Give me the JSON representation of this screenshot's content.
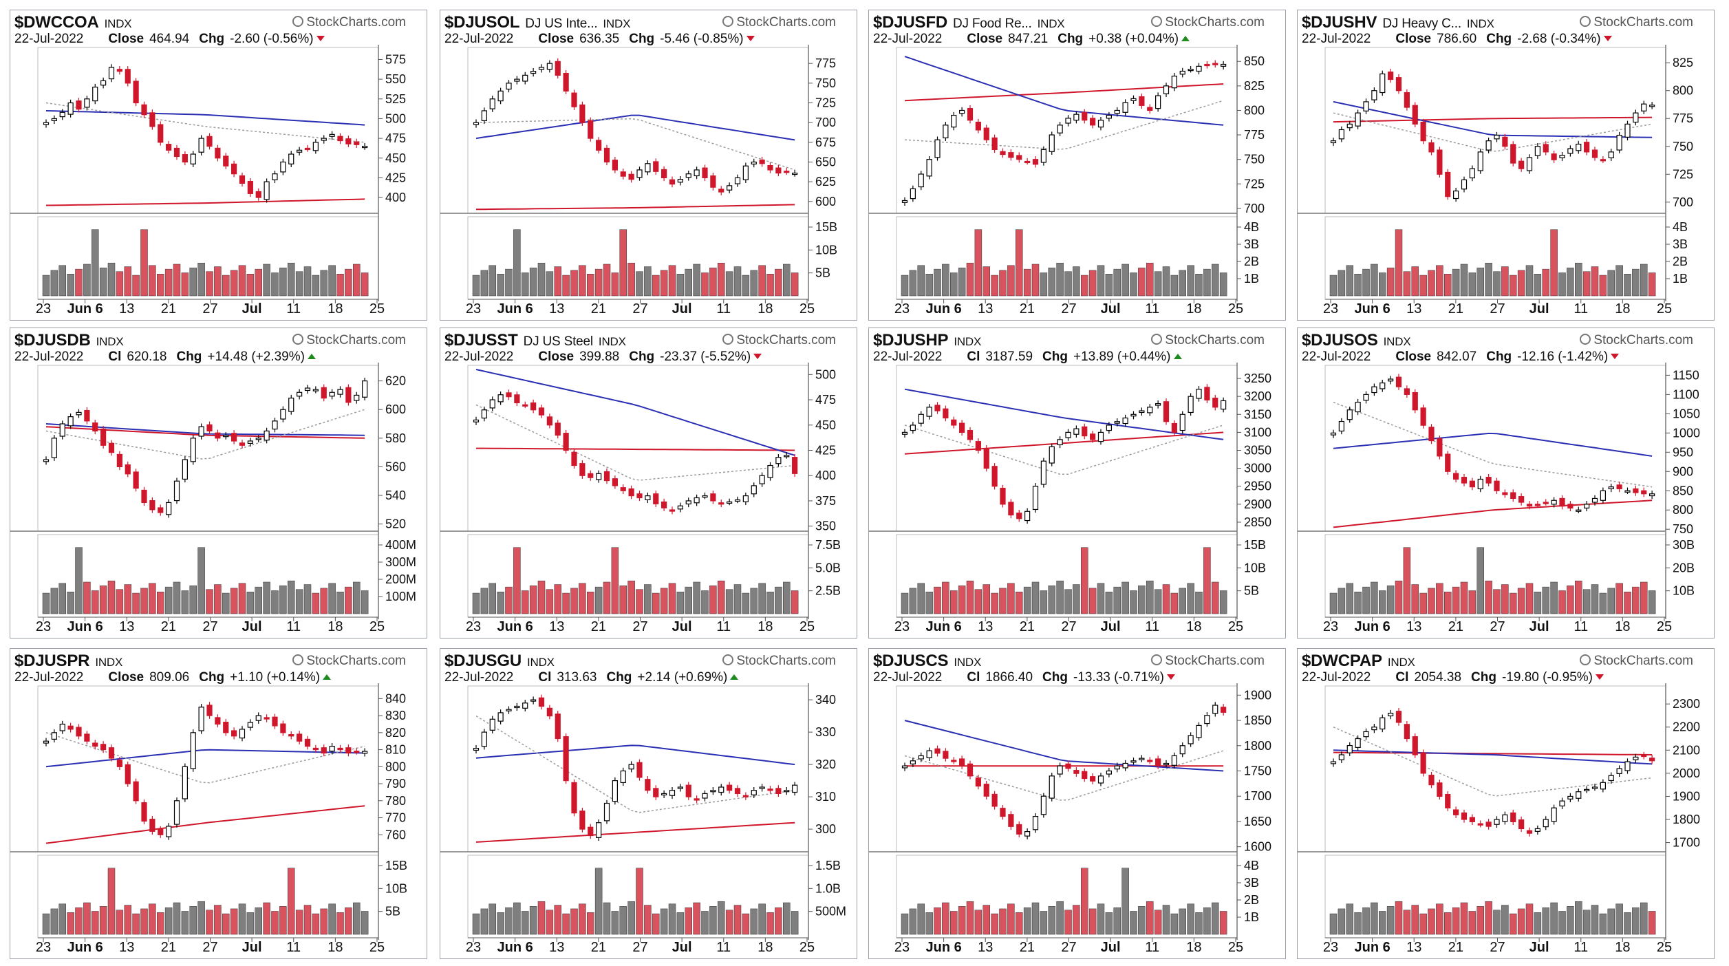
{
  "brand": "StockCharts.com",
  "colors": {
    "up": "#000000",
    "down": "#d0162b",
    "ma_short": "#9a9a9a",
    "ma_mid": "#2a2fb4",
    "ma_long": "#d0162b",
    "vol_up": "#7f7f7f",
    "vol_down": "#d9535f"
  },
  "chart_data": [
    {
      "type": "candlestick",
      "symbol": "$DWCCOA",
      "name": "",
      "index_label": "INDX",
      "date": "22-Jul-2022",
      "close_label": "Close",
      "close": "464.94",
      "chg_label": "Chg",
      "chg": "-2.60 (-0.56%)",
      "direction": "down",
      "ylim": [
        380,
        585
      ],
      "price_ticks": [
        "575",
        "550",
        "525",
        "500",
        "475",
        "450",
        "425",
        "400"
      ],
      "volume_ticks": [],
      "x_ticks": [
        "23",
        "Jun 6",
        "13",
        "21",
        "27",
        "Jul",
        "11",
        "18",
        "25"
      ],
      "path": [
        495,
        500,
        508,
        520,
        512,
        525,
        540,
        548,
        565,
        560,
        545,
        520,
        505,
        490,
        470,
        460,
        452,
        445,
        455,
        475,
        465,
        450,
        440,
        430,
        418,
        405,
        400,
        420,
        430,
        445,
        455,
        460,
        462,
        470,
        475,
        480,
        472,
        468,
        467,
        465
      ],
      "ma_short_level": [
        520,
        490,
        470
      ],
      "ma_mid_level": [
        510,
        505,
        492
      ],
      "ma_long_level": [
        390,
        393,
        398
      ],
      "volume_spikes": [
        6,
        12
      ]
    },
    {
      "type": "candlestick",
      "symbol": "$DJUSOL",
      "name": "DJ US Inte...",
      "index_label": "INDX",
      "date": "22-Jul-2022",
      "close_label": "Close",
      "close": "636.35",
      "chg_label": "Chg",
      "chg": "-5.46 (-0.85%)",
      "direction": "down",
      "ylim": [
        585,
        790
      ],
      "price_ticks": [
        "775",
        "750",
        "725",
        "700",
        "675",
        "650",
        "625",
        "600"
      ],
      "volume_ticks": [
        "15B",
        "10B",
        "5B"
      ],
      "x_ticks": [
        "23",
        "Jun 6",
        "13",
        "21",
        "27",
        "Jul",
        "11",
        "18",
        "25"
      ],
      "path": [
        700,
        715,
        730,
        740,
        750,
        755,
        760,
        765,
        770,
        775,
        760,
        740,
        720,
        700,
        680,
        665,
        650,
        640,
        632,
        628,
        640,
        648,
        638,
        630,
        622,
        628,
        635,
        640,
        630,
        618,
        612,
        620,
        630,
        645,
        650,
        648,
        640,
        636,
        638,
        636
      ],
      "ma_short_level": [
        700,
        705,
        640
      ],
      "ma_mid_level": [
        680,
        710,
        678
      ],
      "ma_long_level": [
        590,
        592,
        596
      ],
      "volume_spikes": [
        5,
        18
      ]
    },
    {
      "type": "candlestick",
      "symbol": "$DJUSFD",
      "name": "DJ Food Re...",
      "index_label": "INDX",
      "date": "22-Jul-2022",
      "close_label": "Close",
      "close": "847.21",
      "chg_label": "Chg",
      "chg": "+0.38 (+0.04%)",
      "direction": "up",
      "ylim": [
        695,
        860
      ],
      "price_ticks": [
        "850",
        "825",
        "800",
        "775",
        "750",
        "725",
        "700"
      ],
      "volume_ticks": [
        "4B",
        "3B",
        "2B",
        "1B"
      ],
      "x_ticks": [
        "23",
        "Jun 6",
        "13",
        "21",
        "27",
        "Jul",
        "11",
        "18",
        "25"
      ],
      "path": [
        708,
        720,
        735,
        750,
        770,
        785,
        795,
        800,
        790,
        780,
        770,
        760,
        755,
        752,
        750,
        748,
        745,
        760,
        775,
        785,
        792,
        796,
        790,
        785,
        790,
        795,
        800,
        808,
        812,
        805,
        800,
        815,
        825,
        835,
        840,
        842,
        845,
        846,
        847,
        847
      ],
      "ma_short_level": [
        770,
        760,
        810
      ],
      "ma_mid_level": [
        855,
        800,
        785
      ],
      "ma_long_level": [
        810,
        818,
        827
      ],
      "volume_spikes": [
        9,
        14
      ]
    },
    {
      "type": "candlestick",
      "symbol": "$DJUSHV",
      "name": "DJ Heavy C...",
      "index_label": "INDX",
      "date": "22-Jul-2022",
      "close_label": "Close",
      "close": "786.60",
      "chg_label": "Chg",
      "chg": "-2.68 (-0.34%)",
      "direction": "down",
      "ylim": [
        690,
        835
      ],
      "price_ticks": [
        "825",
        "800",
        "775",
        "750",
        "725",
        "700"
      ],
      "volume_ticks": [
        "4B",
        "3B",
        "2B",
        "1B"
      ],
      "x_ticks": [
        "23",
        "Jun 6",
        "13",
        "21",
        "27",
        "Jul",
        "11",
        "18",
        "25"
      ],
      "path": [
        755,
        765,
        770,
        780,
        790,
        800,
        815,
        810,
        800,
        785,
        770,
        755,
        745,
        725,
        705,
        710,
        720,
        730,
        745,
        755,
        760,
        750,
        735,
        730,
        740,
        750,
        745,
        738,
        742,
        748,
        752,
        745,
        740,
        738,
        745,
        760,
        770,
        780,
        788,
        787
      ],
      "ma_short_level": [
        780,
        745,
        770
      ],
      "ma_mid_level": [
        790,
        760,
        758
      ],
      "ma_long_level": [
        772,
        775,
        776
      ],
      "volume_spikes": [
        8,
        27
      ]
    },
    {
      "type": "candlestick",
      "symbol": "$DJUSDB",
      "name": "",
      "index_label": "INDX",
      "date": "22-Jul-2022",
      "close_label": "Cl",
      "close": "620.18",
      "chg_label": "Chg",
      "chg": "+14.48 (+2.39%)",
      "direction": "up",
      "ylim": [
        515,
        628
      ],
      "price_ticks": [
        "620",
        "600",
        "580",
        "560",
        "540",
        "520"
      ],
      "volume_ticks": [
        "400M",
        "300M",
        "200M",
        "100M"
      ],
      "x_ticks": [
        "23",
        "Jun 6",
        "13",
        "21",
        "27",
        "Jul",
        "11",
        "18",
        "25"
      ],
      "path": [
        565,
        580,
        590,
        595,
        598,
        592,
        585,
        575,
        570,
        560,
        555,
        545,
        535,
        530,
        528,
        535,
        550,
        565,
        580,
        588,
        585,
        580,
        582,
        578,
        575,
        578,
        580,
        585,
        592,
        600,
        608,
        612,
        615,
        614,
        608,
        612,
        614,
        605,
        610,
        620
      ],
      "ma_short_level": [
        585,
        565,
        600
      ],
      "ma_mid_level": [
        590,
        583,
        582
      ],
      "ma_long_level": [
        588,
        582,
        580
      ],
      "volume_spikes": [
        4,
        19
      ]
    },
    {
      "type": "candlestick",
      "symbol": "$DJUSST",
      "name": "DJ US Steel",
      "index_label": "INDX",
      "date": "22-Jul-2022",
      "close_label": "Close",
      "close": "399.88",
      "chg_label": "Chg",
      "chg": "-23.37 (-5.52%)",
      "direction": "down",
      "ylim": [
        345,
        505
      ],
      "price_ticks": [
        "500",
        "475",
        "450",
        "425",
        "400",
        "375",
        "350"
      ],
      "volume_ticks": [
        "7.5B",
        "5.0B",
        "2.5B"
      ],
      "x_ticks": [
        "23",
        "Jun 6",
        "13",
        "21",
        "27",
        "Jul",
        "11",
        "18",
        "25"
      ],
      "path": [
        455,
        465,
        475,
        480,
        478,
        472,
        470,
        465,
        460,
        450,
        440,
        425,
        410,
        400,
        398,
        402,
        395,
        390,
        385,
        380,
        378,
        380,
        372,
        368,
        365,
        370,
        375,
        378,
        380,
        375,
        372,
        374,
        376,
        380,
        390,
        400,
        410,
        418,
        420,
        402
      ],
      "ma_short_level": [
        470,
        395,
        410
      ],
      "ma_mid_level": [
        505,
        470,
        420
      ],
      "ma_long_level": [
        427,
        426,
        425
      ],
      "volume_spikes": [
        5,
        17
      ]
    },
    {
      "type": "candlestick",
      "symbol": "$DJUSHP",
      "name": "",
      "index_label": "INDX",
      "date": "22-Jul-2022",
      "close_label": "Cl",
      "close": "3187.59",
      "chg_label": "Chg",
      "chg": "+13.89 (+0.44%)",
      "direction": "up",
      "ylim": [
        2825,
        3275
      ],
      "price_ticks": [
        "3250",
        "3200",
        "3150",
        "3100",
        "3050",
        "3000",
        "2950",
        "2900",
        "2850"
      ],
      "volume_ticks": [
        "15B",
        "10B",
        "5B"
      ],
      "x_ticks": [
        "23",
        "Jun 6",
        "13",
        "21",
        "27",
        "Jul",
        "11",
        "18",
        "25"
      ],
      "path": [
        3100,
        3120,
        3150,
        3170,
        3160,
        3140,
        3120,
        3100,
        3080,
        3050,
        3000,
        2950,
        2900,
        2870,
        2860,
        2880,
        2950,
        3020,
        3060,
        3080,
        3100,
        3110,
        3090,
        3080,
        3100,
        3120,
        3130,
        3140,
        3150,
        3160,
        3170,
        3180,
        3130,
        3100,
        3150,
        3200,
        3220,
        3190,
        3170,
        3188
      ],
      "ma_short_level": [
        3120,
        2980,
        3120
      ],
      "ma_mid_level": [
        3220,
        3140,
        3080
      ],
      "ma_long_level": [
        3040,
        3070,
        3100
      ],
      "volume_spikes": [
        22,
        37
      ]
    },
    {
      "type": "candlestick",
      "symbol": "$DJUSOS",
      "name": "",
      "index_label": "INDX",
      "date": "22-Jul-2022",
      "close_label": "Close",
      "close": "842.07",
      "chg_label": "Chg",
      "chg": "-12.16 (-1.42%)",
      "direction": "down",
      "ylim": [
        745,
        1165
      ],
      "price_ticks": [
        "1150",
        "1100",
        "1050",
        "1000",
        "950",
        "900",
        "850",
        "800",
        "750"
      ],
      "volume_ticks": [
        "30B",
        "20B",
        "10B"
      ],
      "x_ticks": [
        "23",
        "Jun 6",
        "13",
        "21",
        "27",
        "Jul",
        "11",
        "18",
        "25"
      ],
      "path": [
        1000,
        1030,
        1060,
        1080,
        1100,
        1120,
        1130,
        1140,
        1120,
        1100,
        1060,
        1020,
        980,
        940,
        900,
        880,
        870,
        860,
        880,
        870,
        850,
        840,
        830,
        820,
        810,
        815,
        820,
        825,
        810,
        805,
        800,
        815,
        830,
        850,
        860,
        855,
        850,
        845,
        842,
        842
      ],
      "ma_short_level": [
        1080,
        920,
        860
      ],
      "ma_mid_level": [
        960,
        1000,
        940
      ],
      "ma_long_level": [
        755,
        800,
        825
      ],
      "volume_spikes": [
        9,
        18
      ]
    },
    {
      "type": "candlestick",
      "symbol": "$DJUSPR",
      "name": "",
      "index_label": "INDX",
      "date": "22-Jul-2022",
      "close_label": "Close",
      "close": "809.06",
      "chg_label": "Chg",
      "chg": "+1.10 (+0.14%)",
      "direction": "up",
      "ylim": [
        750,
        845
      ],
      "price_ticks": [
        "840",
        "830",
        "820",
        "810",
        "800",
        "790",
        "780",
        "770",
        "760"
      ],
      "volume_ticks": [
        "15B",
        "10B",
        "5B"
      ],
      "x_ticks": [
        "23",
        "Jun 6",
        "13",
        "21",
        "27",
        "Jul",
        "11",
        "18",
        "25"
      ],
      "path": [
        815,
        820,
        825,
        822,
        818,
        815,
        812,
        810,
        805,
        800,
        790,
        780,
        768,
        762,
        760,
        765,
        780,
        800,
        820,
        835,
        830,
        825,
        820,
        818,
        822,
        826,
        830,
        828,
        824,
        820,
        818,
        815,
        812,
        810,
        808,
        812,
        810,
        808,
        809,
        809
      ],
      "ma_short_level": [
        820,
        790,
        812
      ],
      "ma_mid_level": [
        800,
        810,
        808
      ],
      "ma_long_level": [
        755,
        767,
        777
      ],
      "volume_spikes": [
        8,
        30
      ]
    },
    {
      "type": "candlestick",
      "symbol": "$DJUSGU",
      "name": "",
      "index_label": "INDX",
      "date": "22-Jul-2022",
      "close_label": "Cl",
      "close": "313.63",
      "chg_label": "Chg",
      "chg": "+2.14 (+0.69%)",
      "direction": "up",
      "ylim": [
        293,
        343
      ],
      "price_ticks": [
        "340",
        "330",
        "320",
        "310",
        "300"
      ],
      "volume_ticks": [
        "1.5B",
        "1.0B",
        "500M"
      ],
      "x_ticks": [
        "23",
        "Jun 6",
        "13",
        "21",
        "27",
        "Jul",
        "11",
        "18",
        "25"
      ],
      "path": [
        325,
        330,
        334,
        336,
        337,
        338,
        339,
        340,
        338,
        335,
        328,
        315,
        305,
        300,
        298,
        302,
        308,
        315,
        318,
        320,
        316,
        312,
        310,
        311,
        312,
        313,
        310,
        309,
        311,
        312,
        313,
        312,
        311,
        310,
        312,
        313,
        312,
        311,
        312,
        313.6
      ],
      "ma_short_level": [
        335,
        305,
        312
      ],
      "ma_mid_level": [
        322,
        326,
        320
      ],
      "ma_long_level": [
        296,
        299,
        302
      ],
      "volume_spikes": [
        15,
        20
      ]
    },
    {
      "type": "candlestick",
      "symbol": "$DJUSCS",
      "name": "",
      "index_label": "INDX",
      "date": "22-Jul-2022",
      "close_label": "Cl",
      "close": "1866.40",
      "chg_label": "Chg",
      "chg": "-13.33 (-0.71%)",
      "direction": "down",
      "ylim": [
        1590,
        1910
      ],
      "price_ticks": [
        "1900",
        "1850",
        "1800",
        "1750",
        "1700",
        "1650",
        "1600"
      ],
      "volume_ticks": [
        "4B",
        "3B",
        "2B",
        "1B"
      ],
      "x_ticks": [
        "23",
        "Jun 6",
        "13",
        "21",
        "27",
        "Jul",
        "11",
        "18",
        "25"
      ],
      "path": [
        1760,
        1770,
        1780,
        1790,
        1785,
        1775,
        1770,
        1760,
        1740,
        1720,
        1700,
        1680,
        1660,
        1640,
        1625,
        1630,
        1660,
        1700,
        1740,
        1760,
        1755,
        1745,
        1735,
        1730,
        1740,
        1750,
        1760,
        1765,
        1770,
        1775,
        1770,
        1760,
        1765,
        1780,
        1800,
        1820,
        1840,
        1860,
        1880,
        1866
      ],
      "ma_short_level": [
        1780,
        1690,
        1790
      ],
      "ma_mid_level": [
        1850,
        1770,
        1750
      ],
      "ma_long_level": [
        1760,
        1760,
        1760
      ],
      "volume_spikes": [
        22,
        27
      ]
    },
    {
      "type": "candlestick",
      "symbol": "$DWCPAP",
      "name": "",
      "index_label": "INDX",
      "date": "22-Jul-2022",
      "close_label": "Cl",
      "close": "2054.38",
      "chg_label": "Chg",
      "chg": "-19.80 (-0.95%)",
      "direction": "down",
      "ylim": [
        1660,
        2360
      ],
      "price_ticks": [
        "2300",
        "2200",
        "2100",
        "2000",
        "1900",
        "1800",
        "1700"
      ],
      "volume_ticks": [],
      "x_ticks": [
        "23",
        "Jun 6",
        "13",
        "21",
        "27",
        "Jul",
        "11",
        "18",
        "25"
      ],
      "path": [
        2050,
        2080,
        2120,
        2150,
        2180,
        2200,
        2240,
        2260,
        2220,
        2150,
        2080,
        2000,
        1950,
        1900,
        1850,
        1820,
        1800,
        1790,
        1780,
        1770,
        1800,
        1820,
        1790,
        1760,
        1740,
        1760,
        1800,
        1850,
        1880,
        1900,
        1920,
        1930,
        1940,
        1960,
        1990,
        2020,
        2050,
        2070,
        2074,
        2054
      ],
      "ma_short_level": [
        2200,
        1900,
        1980
      ],
      "ma_mid_level": [
        2100,
        2080,
        2040
      ],
      "ma_long_level": [
        2090,
        2085,
        2080
      ],
      "volume_spikes": []
    }
  ]
}
